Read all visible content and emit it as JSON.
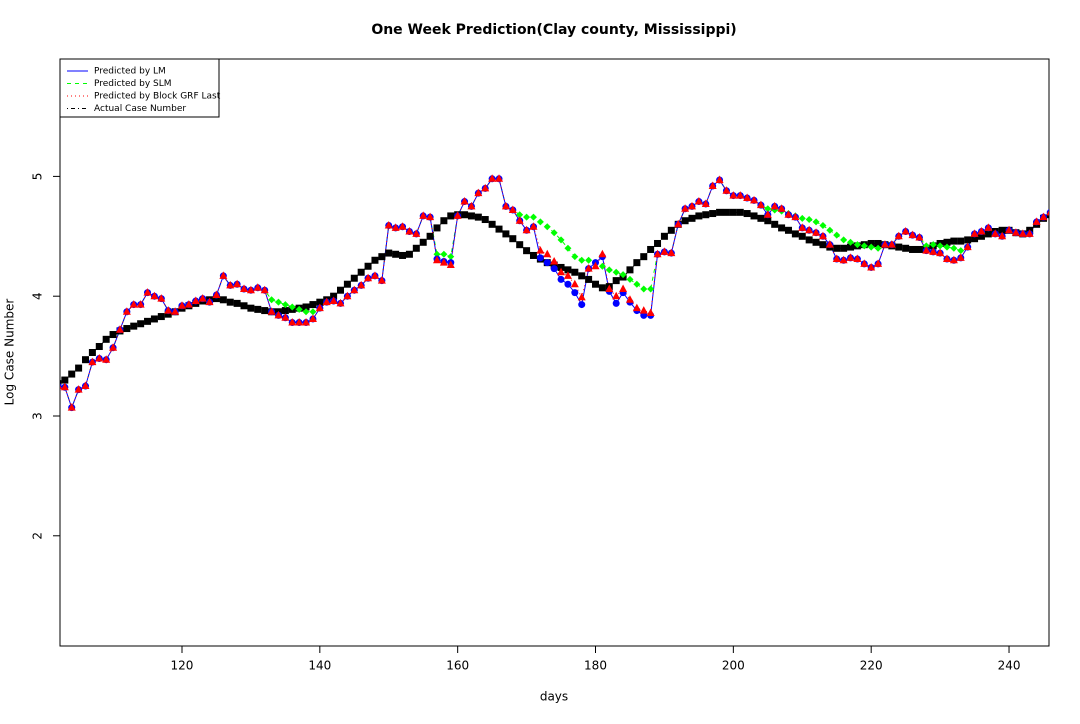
{
  "chart_data": {
    "type": "line",
    "title": "One Week Prediction(Clay county, Mississippi)",
    "x_label": "days",
    "y_label": "Log Case Number",
    "xlim": [
      102.3,
      245.8
    ],
    "ylim": [
      1.08,
      5.98
    ],
    "xticks": [
      120,
      140,
      160,
      180,
      200,
      220,
      240
    ],
    "yticks": [
      2,
      3,
      4,
      5
    ],
    "legend_position": "top-left",
    "x": [
      102,
      103,
      104,
      105,
      106,
      107,
      108,
      109,
      110,
      111,
      112,
      113,
      114,
      115,
      116,
      117,
      118,
      119,
      120,
      121,
      122,
      123,
      124,
      125,
      126,
      127,
      128,
      129,
      130,
      131,
      132,
      133,
      134,
      135,
      136,
      137,
      138,
      139,
      140,
      141,
      142,
      143,
      144,
      145,
      146,
      147,
      148,
      149,
      150,
      151,
      152,
      153,
      154,
      155,
      156,
      157,
      158,
      159,
      160,
      161,
      162,
      163,
      164,
      165,
      166,
      167,
      168,
      169,
      170,
      171,
      172,
      173,
      174,
      175,
      176,
      177,
      178,
      179,
      180,
      181,
      182,
      183,
      184,
      185,
      186,
      187,
      188,
      189,
      190,
      191,
      192,
      193,
      194,
      195,
      196,
      197,
      198,
      199,
      200,
      201,
      202,
      203,
      204,
      205,
      206,
      207,
      208,
      209,
      210,
      211,
      212,
      213,
      214,
      215,
      216,
      217,
      218,
      219,
      220,
      221,
      222,
      223,
      224,
      225,
      226,
      227,
      228,
      229,
      230,
      231,
      232,
      233,
      234,
      235,
      236,
      237,
      238,
      239,
      240,
      241,
      242,
      243,
      244,
      245,
      246
    ],
    "series": [
      {
        "name": "Actual Case Number",
        "color": "#000000",
        "line_style": "dashdot",
        "marker": "square",
        "values": [
          3.27,
          3.3,
          3.35,
          3.4,
          3.47,
          3.53,
          3.58,
          3.64,
          3.68,
          3.71,
          3.73,
          3.75,
          3.77,
          3.79,
          3.81,
          3.83,
          3.85,
          3.87,
          3.9,
          3.92,
          3.94,
          3.96,
          3.97,
          3.98,
          3.97,
          3.95,
          3.94,
          3.92,
          3.9,
          3.89,
          3.88,
          3.87,
          3.87,
          3.88,
          3.89,
          3.9,
          3.91,
          3.93,
          3.95,
          3.97,
          4.0,
          4.05,
          4.1,
          4.15,
          4.2,
          4.25,
          4.3,
          4.33,
          4.36,
          4.35,
          4.34,
          4.35,
          4.4,
          4.45,
          4.5,
          4.57,
          4.63,
          4.67,
          4.68,
          4.68,
          4.67,
          4.66,
          4.64,
          4.6,
          4.56,
          4.52,
          4.48,
          4.43,
          4.38,
          4.34,
          4.31,
          4.28,
          4.26,
          4.24,
          4.22,
          4.2,
          4.17,
          4.14,
          4.1,
          4.07,
          4.08,
          4.13,
          4.16,
          4.22,
          4.28,
          4.33,
          4.39,
          4.44,
          4.5,
          4.55,
          4.6,
          4.63,
          4.65,
          4.67,
          4.68,
          4.69,
          4.7,
          4.7,
          4.7,
          4.7,
          4.69,
          4.67,
          4.65,
          4.63,
          4.6,
          4.57,
          4.55,
          4.52,
          4.5,
          4.47,
          4.45,
          4.43,
          4.41,
          4.4,
          4.4,
          4.41,
          4.42,
          4.43,
          4.44,
          4.44,
          4.43,
          4.42,
          4.41,
          4.4,
          4.39,
          4.39,
          4.4,
          4.42,
          4.44,
          4.45,
          4.46,
          4.46,
          4.47,
          4.48,
          4.5,
          4.52,
          4.54,
          4.55,
          4.55,
          4.53,
          4.52,
          4.55,
          4.6,
          4.65,
          4.68
        ]
      },
      {
        "name": "Predicted by SLM",
        "color": "#00ff00",
        "line_style": "dashed",
        "marker": "diamond",
        "values": [
          3.25,
          3.24,
          3.07,
          3.22,
          3.25,
          3.45,
          3.48,
          3.47,
          3.57,
          3.72,
          3.87,
          3.93,
          3.93,
          4.03,
          4.0,
          3.98,
          3.88,
          3.87,
          3.92,
          3.93,
          3.96,
          3.98,
          3.95,
          4.01,
          4.17,
          4.09,
          4.1,
          4.06,
          4.05,
          4.07,
          4.05,
          3.97,
          3.95,
          3.93,
          3.91,
          3.89,
          3.87,
          3.87,
          3.9,
          3.95,
          3.96,
          3.94,
          4.0,
          4.05,
          4.09,
          4.15,
          4.17,
          4.13,
          4.59,
          4.57,
          4.58,
          4.54,
          4.52,
          4.67,
          4.66,
          4.35,
          4.35,
          4.33,
          4.67,
          4.79,
          4.75,
          4.86,
          4.9,
          4.98,
          4.98,
          4.75,
          4.72,
          4.68,
          4.66,
          4.66,
          4.62,
          4.58,
          4.53,
          4.47,
          4.4,
          4.33,
          4.3,
          4.3,
          4.28,
          4.25,
          4.22,
          4.2,
          4.18,
          4.14,
          4.1,
          4.06,
          4.06,
          4.35,
          4.37,
          4.36,
          4.6,
          4.73,
          4.75,
          4.79,
          4.77,
          4.92,
          4.97,
          4.88,
          4.84,
          4.84,
          4.82,
          4.8,
          4.76,
          4.73,
          4.72,
          4.71,
          4.69,
          4.67,
          4.65,
          4.64,
          4.62,
          4.59,
          4.55,
          4.51,
          4.47,
          4.45,
          4.43,
          4.42,
          4.41,
          4.4,
          4.43,
          4.43,
          4.5,
          4.54,
          4.51,
          4.49,
          4.42,
          4.43,
          4.42,
          4.41,
          4.4,
          4.38,
          4.41,
          4.52,
          4.54,
          4.57,
          4.52,
          4.5,
          4.55,
          4.53,
          4.52,
          4.52,
          4.62,
          4.66,
          4.7
        ]
      },
      {
        "name": "Predicted by LM",
        "color": "#0000ff",
        "line_style": "solid",
        "marker": "circle",
        "values": [
          3.25,
          3.24,
          3.07,
          3.22,
          3.25,
          3.45,
          3.48,
          3.47,
          3.57,
          3.72,
          3.87,
          3.93,
          3.93,
          4.03,
          4.0,
          3.98,
          3.88,
          3.87,
          3.92,
          3.93,
          3.96,
          3.98,
          3.95,
          4.01,
          4.17,
          4.09,
          4.1,
          4.06,
          4.05,
          4.07,
          4.05,
          3.87,
          3.84,
          3.82,
          3.78,
          3.78,
          3.78,
          3.81,
          3.9,
          3.95,
          3.96,
          3.94,
          4.0,
          4.05,
          4.09,
          4.15,
          4.17,
          4.13,
          4.59,
          4.57,
          4.58,
          4.54,
          4.52,
          4.67,
          4.66,
          4.31,
          4.29,
          4.28,
          4.67,
          4.79,
          4.75,
          4.86,
          4.9,
          4.98,
          4.98,
          4.75,
          4.72,
          4.63,
          4.55,
          4.58,
          4.32,
          4.28,
          4.23,
          4.14,
          4.1,
          4.03,
          3.93,
          4.23,
          4.28,
          4.33,
          4.04,
          3.94,
          4.03,
          3.95,
          3.88,
          3.84,
          3.84,
          4.35,
          4.37,
          4.36,
          4.6,
          4.73,
          4.75,
          4.79,
          4.77,
          4.92,
          4.97,
          4.88,
          4.84,
          4.84,
          4.82,
          4.8,
          4.76,
          4.68,
          4.75,
          4.73,
          4.68,
          4.66,
          4.57,
          4.55,
          4.53,
          4.5,
          4.43,
          4.31,
          4.3,
          4.32,
          4.31,
          4.27,
          4.24,
          4.27,
          4.43,
          4.43,
          4.5,
          4.54,
          4.51,
          4.49,
          4.38,
          4.37,
          4.36,
          4.31,
          4.3,
          4.32,
          4.41,
          4.52,
          4.54,
          4.57,
          4.52,
          4.5,
          4.55,
          4.53,
          4.52,
          4.52,
          4.62,
          4.66,
          4.7
        ]
      },
      {
        "name": "Predicted by Block GRF Last",
        "color": "#ff0000",
        "line_style": "dotted",
        "marker": "triangle",
        "values": [
          3.25,
          3.24,
          3.07,
          3.22,
          3.25,
          3.45,
          3.48,
          3.47,
          3.57,
          3.72,
          3.87,
          3.93,
          3.93,
          4.03,
          4.0,
          3.98,
          3.88,
          3.87,
          3.92,
          3.93,
          3.96,
          3.98,
          3.95,
          4.01,
          4.17,
          4.09,
          4.1,
          4.06,
          4.05,
          4.07,
          4.05,
          3.87,
          3.84,
          3.82,
          3.78,
          3.78,
          3.78,
          3.81,
          3.9,
          3.95,
          3.96,
          3.94,
          4.0,
          4.05,
          4.09,
          4.15,
          4.17,
          4.13,
          4.59,
          4.57,
          4.58,
          4.54,
          4.52,
          4.67,
          4.66,
          4.3,
          4.28,
          4.26,
          4.67,
          4.79,
          4.75,
          4.86,
          4.9,
          4.98,
          4.98,
          4.75,
          4.72,
          4.63,
          4.55,
          4.58,
          4.38,
          4.35,
          4.29,
          4.2,
          4.17,
          4.1,
          3.99,
          4.23,
          4.25,
          4.35,
          4.06,
          4.0,
          4.06,
          3.97,
          3.9,
          3.88,
          3.86,
          4.35,
          4.37,
          4.36,
          4.6,
          4.73,
          4.75,
          4.79,
          4.77,
          4.92,
          4.97,
          4.88,
          4.84,
          4.84,
          4.82,
          4.8,
          4.76,
          4.68,
          4.75,
          4.73,
          4.68,
          4.66,
          4.57,
          4.55,
          4.53,
          4.5,
          4.43,
          4.31,
          4.3,
          4.32,
          4.31,
          4.27,
          4.24,
          4.27,
          4.43,
          4.43,
          4.5,
          4.54,
          4.51,
          4.49,
          4.38,
          4.37,
          4.36,
          4.31,
          4.3,
          4.32,
          4.41,
          4.52,
          4.54,
          4.57,
          4.52,
          4.5,
          4.55,
          4.53,
          4.52,
          4.52,
          4.62,
          4.66,
          4.7
        ]
      }
    ],
    "legend_order": [
      2,
      1,
      3,
      0
    ]
  }
}
